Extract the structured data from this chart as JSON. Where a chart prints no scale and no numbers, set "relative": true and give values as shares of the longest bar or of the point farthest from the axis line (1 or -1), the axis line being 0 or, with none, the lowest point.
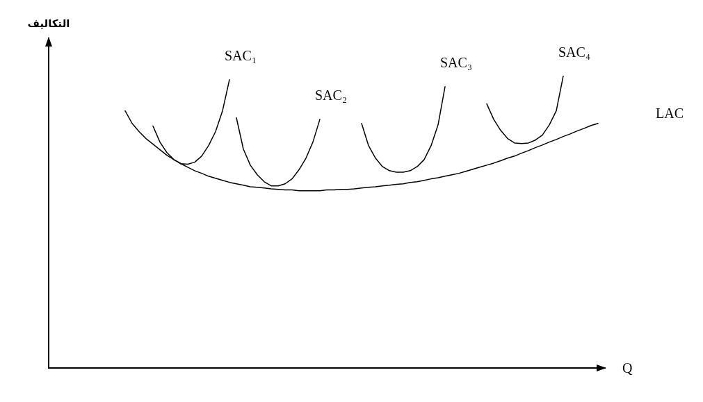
{
  "chart_data": {
    "type": "line",
    "relative": true,
    "xlabel": "Q",
    "ylabel": "التكاليف",
    "grid": false,
    "legend": false,
    "marker": "none",
    "line_style": "solid",
    "categories": [
      null,
      null,
      null,
      null,
      null,
      null,
      null,
      null,
      null,
      null,
      null,
      null,
      null,
      null,
      null,
      null,
      null,
      null,
      null,
      null,
      null,
      null,
      null,
      null,
      null,
      null,
      null,
      null,
      null,
      null,
      null,
      null,
      null,
      null,
      null,
      null,
      null,
      null,
      null,
      null,
      null,
      null,
      null,
      null,
      null,
      null,
      null,
      null,
      null,
      null,
      null,
      null,
      null,
      null,
      null,
      null,
      null,
      null,
      null,
      null,
      null,
      null,
      null,
      null,
      null,
      null,
      null,
      null,
      null,
      null,
      null,
      null,
      null,
      null,
      null,
      null,
      null,
      null,
      null,
      null,
      null
    ],
    "series": [
      {
        "name": "SAC₁",
        "color": "#000000",
        "values": [
          null,
          null,
          null,
          null,
          null,
          null,
          null,
          null,
          null,
          null,
          null,
          null,
          null,
          null,
          null,
          0.829,
          0.774,
          0.738,
          0.714,
          0.7,
          0.698,
          0.705,
          0.726,
          0.762,
          0.81,
          0.881,
          0.988,
          null,
          null,
          null,
          null,
          null,
          null,
          null,
          null,
          null,
          null,
          null,
          null,
          null,
          null,
          null,
          null,
          null,
          null,
          null,
          null,
          null,
          null,
          null,
          null,
          null,
          null,
          null,
          null,
          null,
          null,
          null,
          null,
          null,
          null,
          null,
          null,
          null,
          null,
          null,
          null,
          null,
          null,
          null,
          null,
          null,
          null,
          null,
          null,
          null,
          null,
          null,
          null,
          null,
          null
        ]
      },
      {
        "name": "SAC₂",
        "color": "#000000",
        "values": [
          null,
          null,
          null,
          null,
          null,
          null,
          null,
          null,
          null,
          null,
          null,
          null,
          null,
          null,
          null,
          null,
          null,
          null,
          null,
          null,
          null,
          null,
          null,
          null,
          null,
          null,
          null,
          0.857,
          0.75,
          0.695,
          0.662,
          0.638,
          0.624,
          0.624,
          0.631,
          0.648,
          0.679,
          0.719,
          0.774,
          0.852,
          null,
          null,
          null,
          null,
          null,
          null,
          null,
          null,
          null,
          null,
          null,
          null,
          null,
          null,
          null,
          null,
          null,
          null,
          null,
          null,
          null,
          null,
          null,
          null,
          null,
          null,
          null,
          null,
          null,
          null,
          null,
          null,
          null,
          null,
          null,
          null,
          null,
          null,
          null,
          null,
          null
        ]
      },
      {
        "name": "SAC₃",
        "color": "#000000",
        "values": [
          null,
          null,
          null,
          null,
          null,
          null,
          null,
          null,
          null,
          null,
          null,
          null,
          null,
          null,
          null,
          null,
          null,
          null,
          null,
          null,
          null,
          null,
          null,
          null,
          null,
          null,
          null,
          null,
          null,
          null,
          null,
          null,
          null,
          null,
          null,
          null,
          null,
          null,
          null,
          null,
          null,
          null,
          null,
          null,
          null,
          0.838,
          0.762,
          0.719,
          0.69,
          0.676,
          0.671,
          0.671,
          0.676,
          0.69,
          0.714,
          0.762,
          0.833,
          0.964,
          null,
          null,
          null,
          null,
          null,
          null,
          null,
          null,
          null,
          null,
          null,
          null,
          null,
          null,
          null,
          null,
          null,
          null,
          null,
          null,
          null,
          null,
          null
        ]
      },
      {
        "name": "SAC₄",
        "color": "#000000",
        "values": [
          null,
          null,
          null,
          null,
          null,
          null,
          null,
          null,
          null,
          null,
          null,
          null,
          null,
          null,
          null,
          null,
          null,
          null,
          null,
          null,
          null,
          null,
          null,
          null,
          null,
          null,
          null,
          null,
          null,
          null,
          null,
          null,
          null,
          null,
          null,
          null,
          null,
          null,
          null,
          null,
          null,
          null,
          null,
          null,
          null,
          null,
          null,
          null,
          null,
          null,
          null,
          null,
          null,
          null,
          null,
          null,
          null,
          null,
          null,
          null,
          null,
          null,
          null,
          0.905,
          0.852,
          0.814,
          0.786,
          0.771,
          0.769,
          0.771,
          0.781,
          0.798,
          0.833,
          0.881,
          1,
          null,
          null,
          null,
          null,
          null,
          null
        ]
      },
      {
        "name": "LAC",
        "color": "#000000",
        "values": [
          null,
          null,
          null,
          null,
          null,
          null,
          null,
          null,
          null,
          null,
          null,
          0.881,
          0.838,
          0.81,
          0.786,
          0.767,
          0.748,
          0.729,
          0.714,
          0.7,
          0.688,
          0.676,
          0.667,
          0.657,
          0.65,
          0.643,
          0.636,
          0.631,
          0.626,
          0.621,
          0.619,
          0.617,
          0.614,
          0.612,
          0.61,
          0.61,
          0.607,
          0.607,
          0.607,
          0.607,
          0.61,
          0.61,
          0.612,
          0.612,
          0.614,
          0.617,
          0.619,
          0.621,
          0.624,
          0.626,
          0.629,
          0.631,
          0.636,
          0.638,
          0.643,
          0.648,
          0.652,
          0.657,
          0.662,
          0.667,
          0.674,
          0.681,
          0.688,
          0.695,
          0.702,
          0.71,
          0.719,
          0.726,
          0.736,
          0.745,
          0.755,
          0.764,
          0.774,
          0.783,
          0.793,
          0.802,
          0.812,
          0.821,
          0.831,
          0.838,
          null
        ]
      }
    ]
  }
}
